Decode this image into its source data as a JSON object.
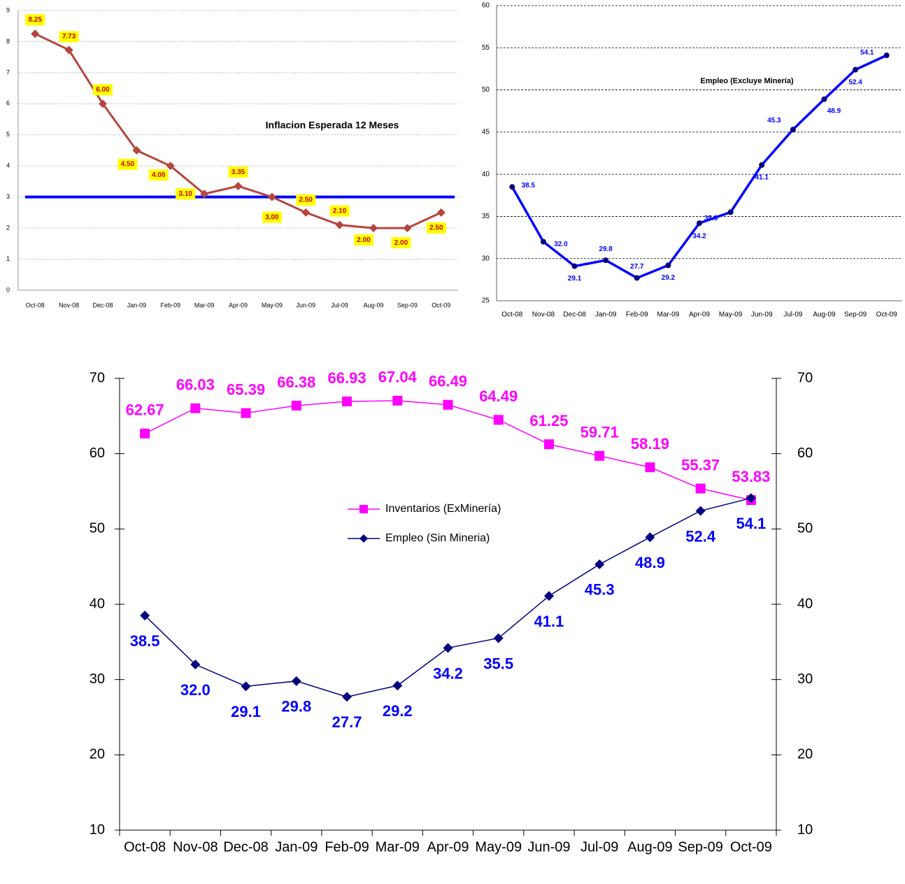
{
  "chart_data": [
    {
      "type": "line",
      "title": "Inflacion Esperada 12 Meses",
      "categories": [
        "Oct-08",
        "Nov-08",
        "Dec-08",
        "Jan-09",
        "Feb-09",
        "Mar-09",
        "Apr-09",
        "May-09",
        "Jun-09",
        "Jul-09",
        "Aug-09",
        "Sep-09",
        "Oct-09"
      ],
      "values": [
        8.25,
        7.73,
        6.0,
        4.5,
        4.0,
        3.1,
        3.35,
        3.0,
        2.5,
        2.1,
        2.0,
        2.0,
        2.5
      ],
      "value_labels": [
        "8.25",
        "7.73",
        "6.00",
        "4.50",
        "4.00",
        "3.10",
        "3.35",
        "3.00",
        "2.50",
        "2.10",
        "2.00",
        "2.00",
        "2.50"
      ],
      "color": "#b5463f",
      "label_color": "#cc0000",
      "ylim": [
        0,
        9
      ],
      "yticks": [
        0,
        1,
        2,
        3,
        4,
        5,
        6,
        7,
        8,
        9
      ],
      "grid": true,
      "reference_line": {
        "value": 3,
        "color": "#0000ff"
      }
    },
    {
      "type": "line",
      "title": "Empleo (Excluye Minería)",
      "categories": [
        "Oct-08",
        "Nov-08",
        "Dec-08",
        "Jan-09",
        "Feb-09",
        "Mar-09",
        "Apr-09",
        "May-09",
        "Jun-09",
        "Jul-09",
        "Aug-09",
        "Sep-09",
        "Oct-09"
      ],
      "values": [
        38.5,
        32.0,
        29.1,
        29.8,
        27.7,
        29.2,
        34.2,
        35.5,
        41.1,
        45.3,
        48.9,
        52.4,
        54.1
      ],
      "value_labels": [
        "38.5",
        "32.0",
        "29.1",
        "29.8",
        "27.7",
        "29.2",
        "34.2",
        "35.5",
        "41.1",
        "45.3",
        "48.9",
        "52.4",
        "54.1"
      ],
      "color": "#0000ff",
      "marker_color": "#000080",
      "label_color": "#0000ff",
      "ylim": [
        25,
        60
      ],
      "yticks": [
        25,
        30,
        35,
        40,
        45,
        50,
        55,
        60
      ],
      "grid": true
    },
    {
      "type": "line",
      "categories": [
        "Oct-08",
        "Nov-08",
        "Dec-08",
        "Jan-09",
        "Feb-09",
        "Mar-09",
        "Apr-09",
        "May-09",
        "Jun-09",
        "Jul-09",
        "Aug-09",
        "Sep-09",
        "Oct-09"
      ],
      "series": [
        {
          "name": "Inventarios (ExMinería)",
          "color": "#ff00ff",
          "label_color": "#ff00ff",
          "axis": "y2",
          "values": [
            62.67,
            66.03,
            65.39,
            66.38,
            66.93,
            67.04,
            66.49,
            64.49,
            61.25,
            59.71,
            58.19,
            55.37,
            53.83
          ],
          "value_labels": [
            "62.67",
            "66.03",
            "65.39",
            "66.38",
            "66.93",
            "67.04",
            "66.49",
            "64.49",
            "61.25",
            "59.71",
            "58.19",
            "55.37",
            "53.83"
          ]
        },
        {
          "name": "Empleo (Sin Mineria)",
          "color": "#000080",
          "label_color": "#0000ff",
          "values": [
            38.5,
            32.0,
            29.1,
            29.8,
            27.7,
            29.2,
            34.2,
            35.5,
            41.1,
            45.3,
            48.9,
            52.4,
            54.1
          ],
          "value_labels": [
            "38.5",
            "32.0",
            "29.1",
            "29.8",
            "27.7",
            "29.2",
            "34.2",
            "35.5",
            "41.1",
            "45.3",
            "48.9",
            "52.4",
            "54.1"
          ]
        }
      ],
      "ylim": [
        10,
        70
      ],
      "yticks": [
        10,
        20,
        30,
        40,
        50,
        60,
        70
      ],
      "y2lim": [
        10,
        70
      ],
      "y2ticks": [
        10,
        20,
        30,
        40,
        50,
        60,
        70
      ],
      "grid": false
    }
  ]
}
